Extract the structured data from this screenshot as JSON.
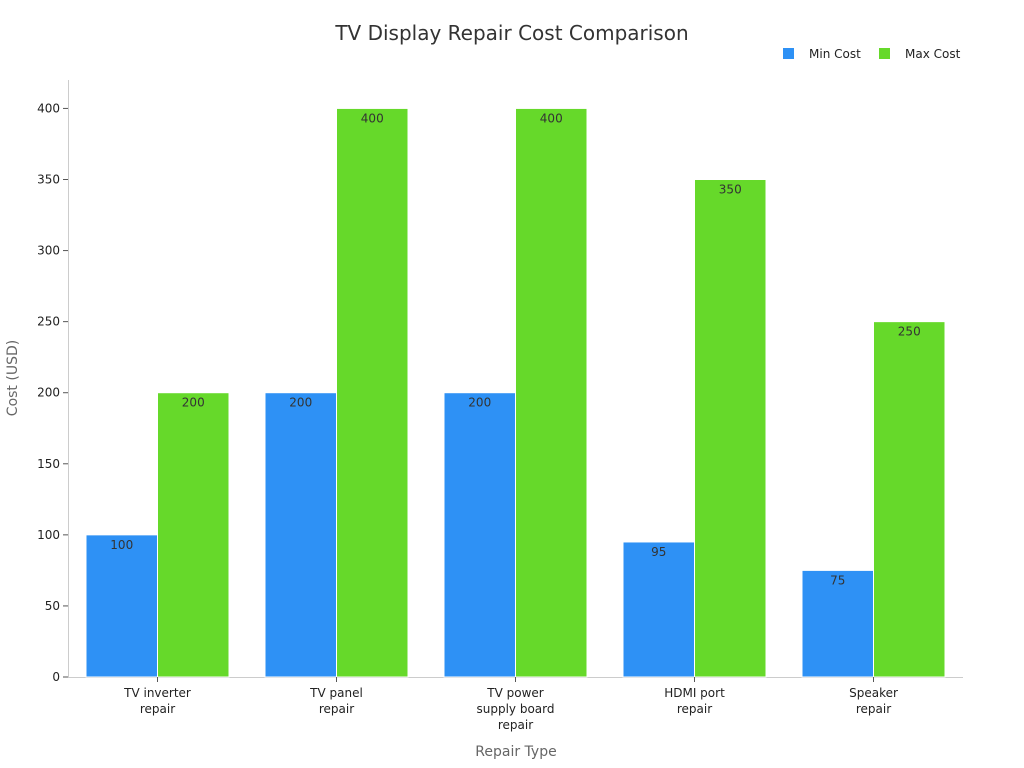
{
  "chart_data": {
    "type": "bar",
    "title": "TV Display Repair Cost Comparison",
    "xlabel": "Repair Type",
    "ylabel": "Cost (USD)",
    "ylim": [
      0,
      420
    ],
    "yticks": [
      0,
      50,
      100,
      150,
      200,
      250,
      300,
      350,
      400
    ],
    "categories": [
      [
        "TV inverter",
        "repair"
      ],
      [
        "TV panel",
        "repair"
      ],
      [
        "TV power",
        "supply board",
        "repair"
      ],
      [
        "HDMI port",
        "repair"
      ],
      [
        "Speaker",
        "repair"
      ]
    ],
    "series": [
      {
        "name": "Min Cost",
        "color": "#2e91f5",
        "values": [
          100,
          200,
          200,
          95,
          75
        ]
      },
      {
        "name": "Max Cost",
        "color": "#66d92a",
        "values": [
          200,
          400,
          400,
          350,
          250
        ]
      }
    ],
    "legend_position": "top-right",
    "grid": false
  }
}
